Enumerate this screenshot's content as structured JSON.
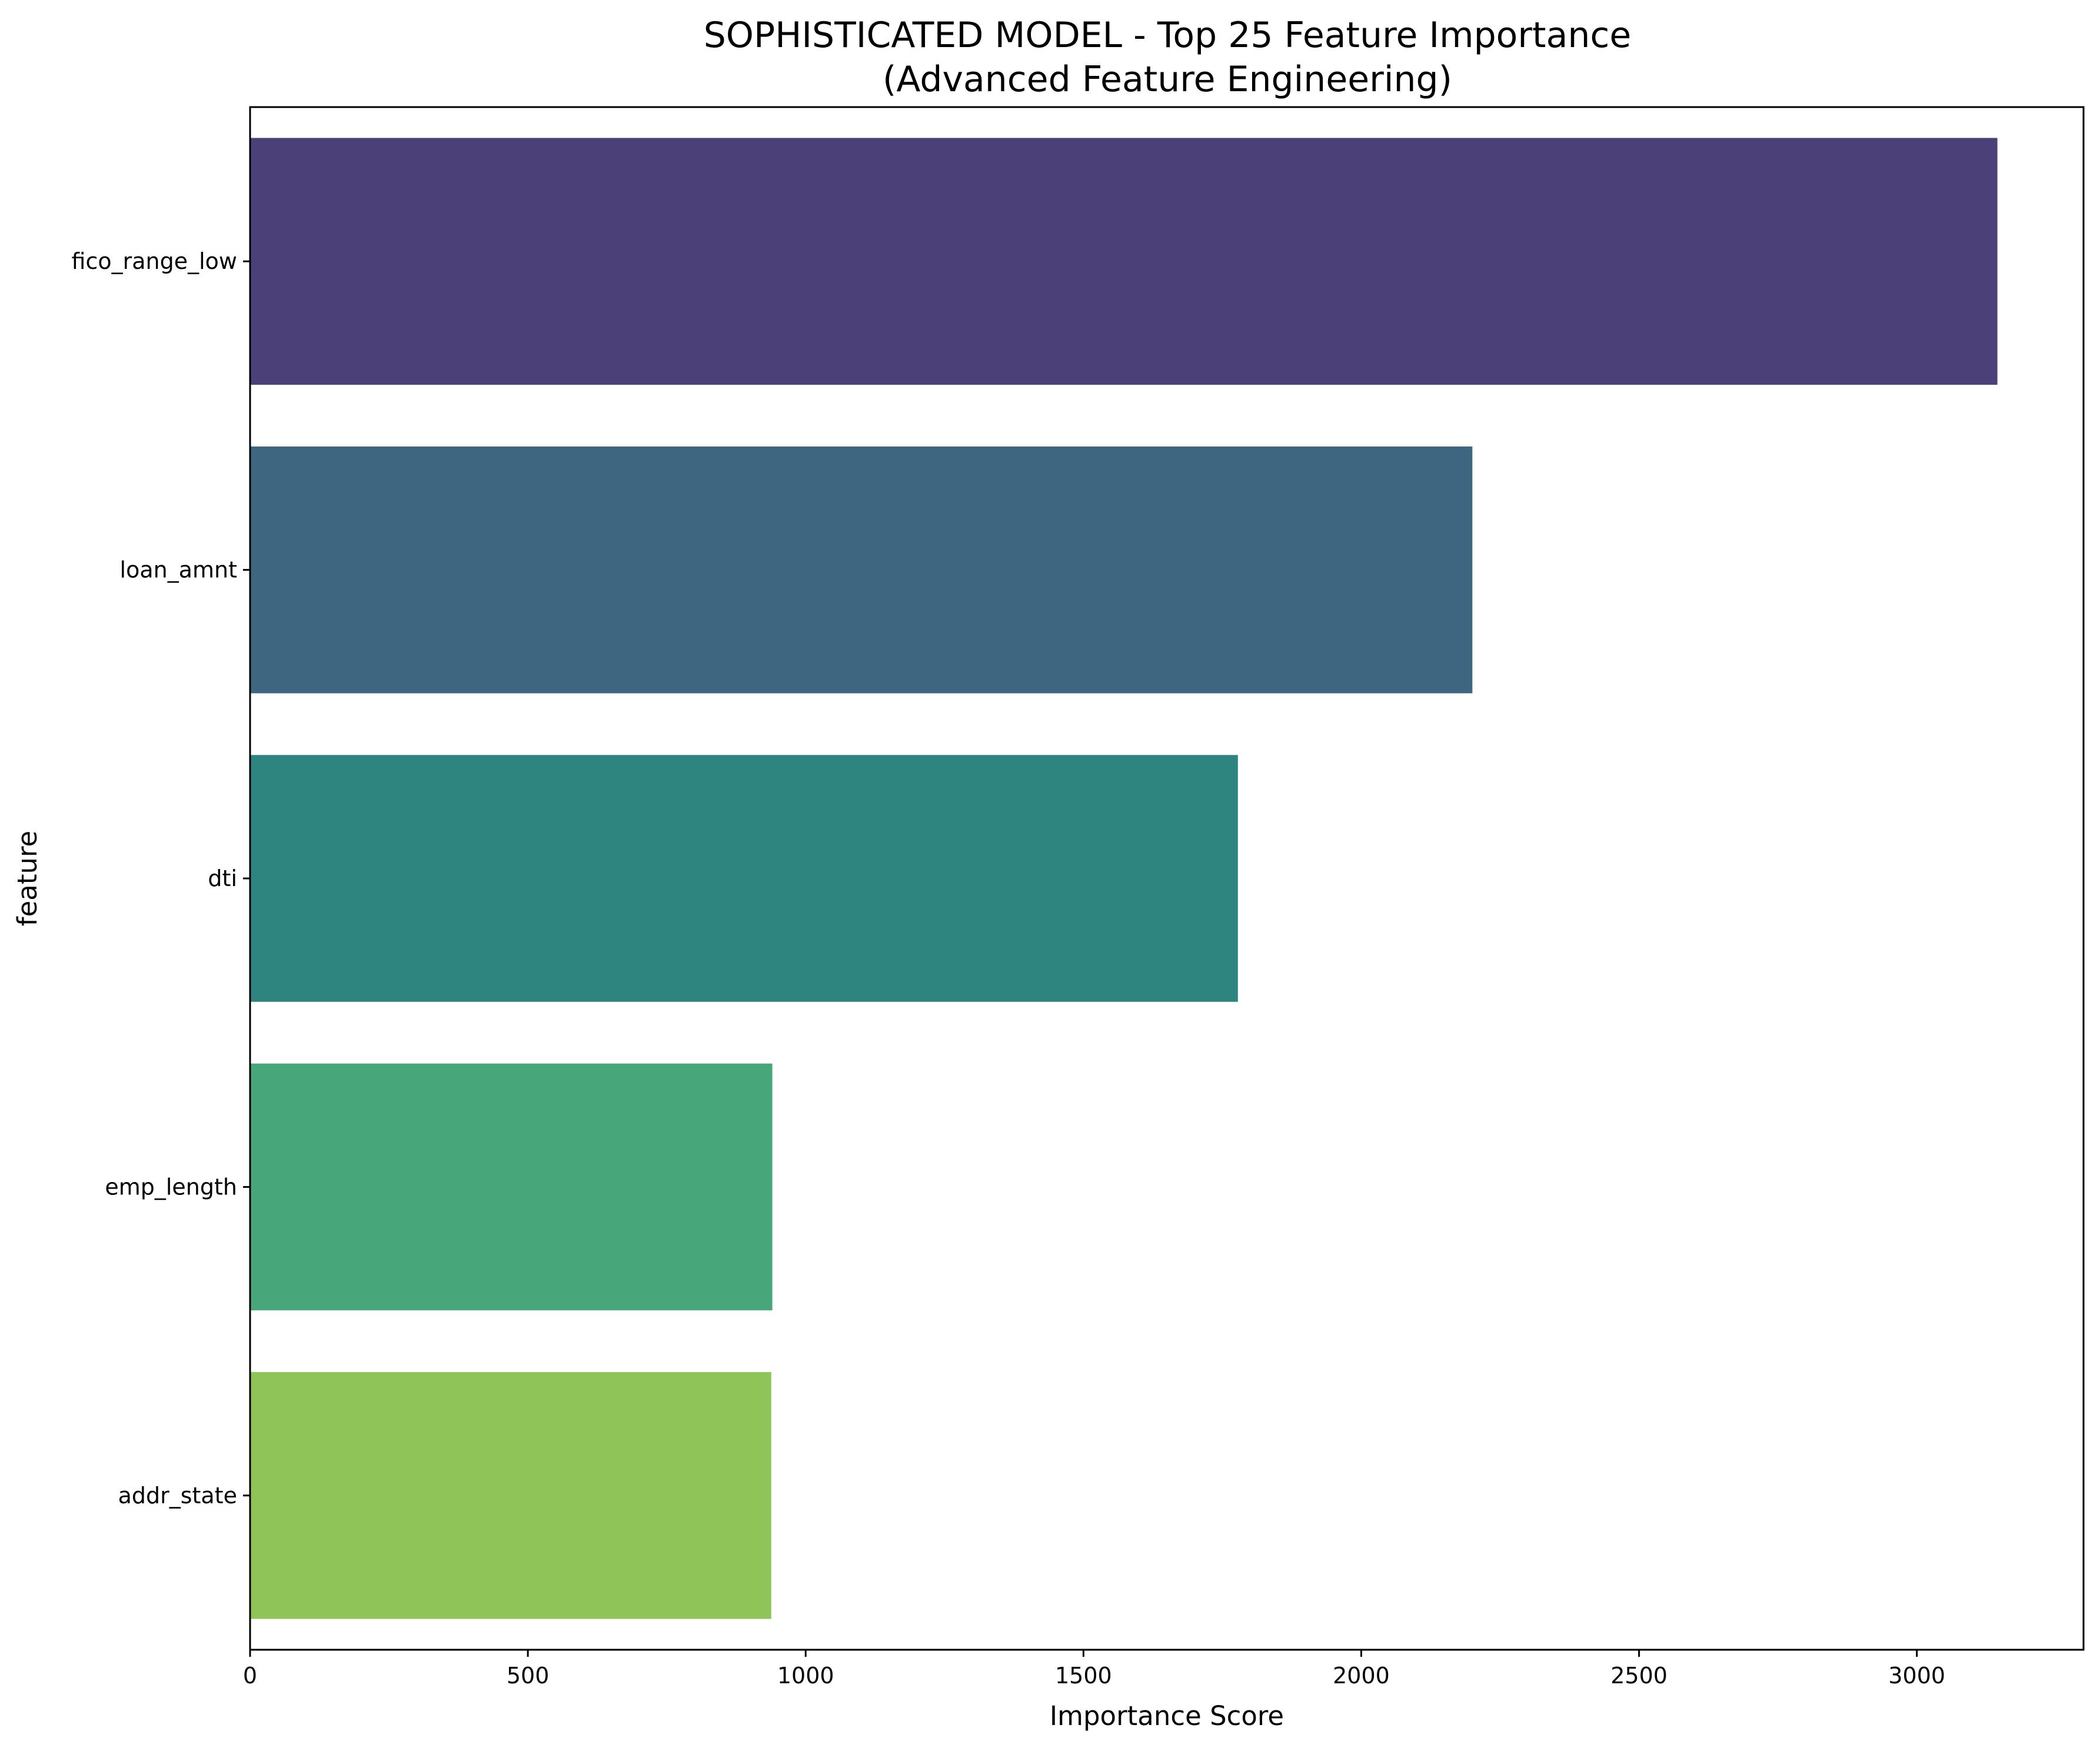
{
  "chart_data": {
    "type": "bar",
    "orientation": "horizontal",
    "title": [
      "SOPHISTICATED MODEL - Top 25 Feature Importance",
      "(Advanced Feature Engineering)"
    ],
    "xlabel": "Importance Score",
    "ylabel": "feature",
    "categories": [
      "fico_range_low",
      "loan_amnt",
      "dti",
      "emp_length",
      "addr_state"
    ],
    "values": [
      3145,
      2200,
      1778,
      940,
      938
    ],
    "colors": [
      "#4b4178",
      "#3f6680",
      "#2e8580",
      "#48a77a",
      "#8fc459"
    ],
    "xlim": [
      0,
      3300
    ],
    "xticks": [
      0,
      500,
      1000,
      1500,
      2000,
      2500,
      3000
    ],
    "grid": false,
    "legend": "none"
  }
}
